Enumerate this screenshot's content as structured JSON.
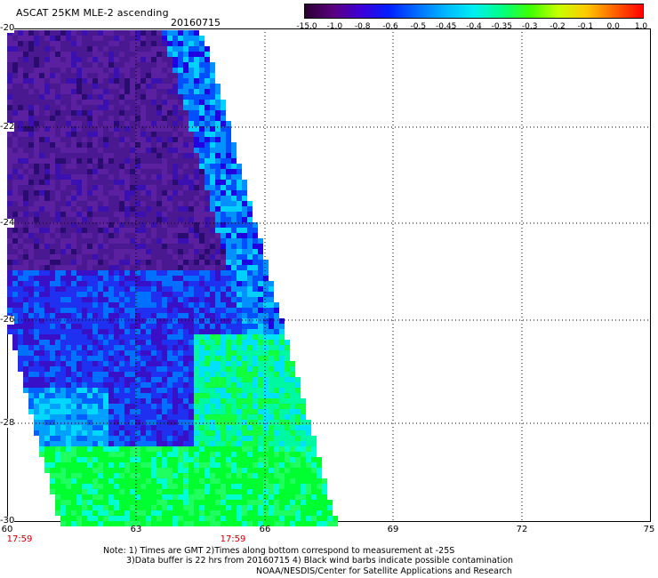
{
  "header": {
    "title": "ASCAT 25KM MLE-2 ascending",
    "date": "20160715"
  },
  "colorbar": {
    "labels": [
      "-15.0",
      "-1.0",
      "-0.8",
      "-0.6",
      "-0.5",
      "-0.45",
      "-0.4",
      "-0.35",
      "-0.3",
      "-0.2",
      "-0.1",
      "0.0",
      "1.0"
    ],
    "colors": [
      "#2a0030",
      "#5a0080",
      "#3c00d8",
      "#0020ff",
      "#0070ff",
      "#00b8ff",
      "#00f0f0",
      "#00ff80",
      "#40ff00",
      "#c8ff00",
      "#ffc800",
      "#ff6000",
      "#ff0000"
    ]
  },
  "map": {
    "x_ticks": [
      "60",
      "63",
      "66",
      "69",
      "72",
      "75"
    ],
    "y_ticks": [
      "-20",
      "-22",
      "-24",
      "-26",
      "-28",
      "-30"
    ],
    "time_labels": [
      "17:59",
      "17:59"
    ]
  },
  "notes": {
    "line1": "Note: 1) Times are GMT 2)Times along bottom correspond to measurement at -25S",
    "line2": "3)Data buffer is 22 hrs from 20160715 4) Black wind barbs indicate possible contamination",
    "line3": "NOAA/NESDIS/Center for Satellite Applications and Research"
  }
}
